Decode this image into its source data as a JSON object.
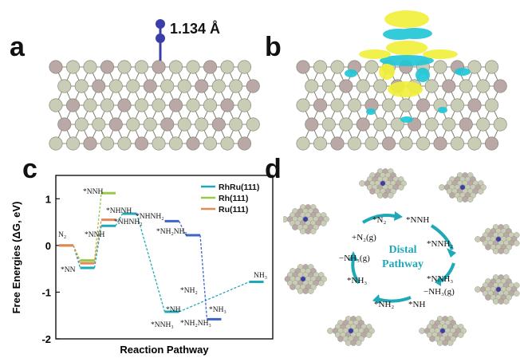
{
  "panels": {
    "a": {
      "letter": "a",
      "bond_label": "1.134 Å"
    },
    "b": {
      "letter": "b"
    },
    "c": {
      "letter": "c"
    },
    "d": {
      "letter": "d"
    }
  },
  "colors": {
    "surface_light": "#c9cdb6",
    "surface_dark": "#b9a8a6",
    "nitrogen": "#3a3fa8",
    "charge_yellow": "#f1ef3b",
    "charge_cyan": "#22c7d6",
    "rhru": "#1fa9b7",
    "rh": "#99c94a",
    "ru": "#e08a55",
    "blue_step": "#3b66c9"
  },
  "chart_data": {
    "type": "line",
    "ylabel": "Free Energies (ΔG, eV)",
    "xlabel": "Reaction Pathway",
    "ylim": [
      -2,
      1.5
    ],
    "yticks": [
      -2,
      -1,
      0,
      1
    ],
    "legend": [
      "RhRu(111)",
      "Rh(111)",
      "Ru(111)"
    ],
    "legend_position": "top-right",
    "series": [
      {
        "name": "RhRu(111)",
        "color": "#1fa9b7",
        "states": [
          "N₂",
          "*NN",
          "*NNH",
          "*NHNH",
          "*NH",
          "*NH₃"
        ],
        "values": [
          0.0,
          -0.48,
          0.42,
          0.68,
          -1.42,
          -0.78
        ]
      },
      {
        "name": "Rh(111)",
        "color": "#99c94a",
        "states": [
          "N₂",
          "*NN",
          "*NNH"
        ],
        "values": [
          0.0,
          -0.32,
          1.12
        ]
      },
      {
        "name": "Ru(111)",
        "color": "#e08a55",
        "states": [
          "N₂",
          "*NN",
          "*NNH"
        ],
        "values": [
          0.0,
          -0.38,
          0.55
        ]
      },
      {
        "name": "",
        "color": "#3b66c9",
        "states": [
          "*NHNH₂",
          "*NH₂NH₂",
          "*NH₂NH₃"
        ],
        "values": [
          0.52,
          0.22,
          -1.58
        ]
      }
    ],
    "annotations": [
      "N₂",
      "*NN",
      "*NNH",
      "*NNH",
      "*NHNH",
      "*NHNH₂",
      "*NHNH₂",
      "*NH₂NH₂",
      "*NNH₃",
      "*NH",
      "*NH₂",
      "*NH₂NH₃",
      "*NH₃",
      "NH₃"
    ]
  },
  "cycle": {
    "center_line1": "Distal",
    "center_line2": "Pathway",
    "labels": [
      "*N₂",
      "*NNH",
      "*NNH₂",
      "*NNH₃",
      "−NH₃(g)",
      "*NH",
      "*NH₂",
      "*NH₃",
      "−NH₃(g)",
      "+N₂(g)"
    ]
  }
}
